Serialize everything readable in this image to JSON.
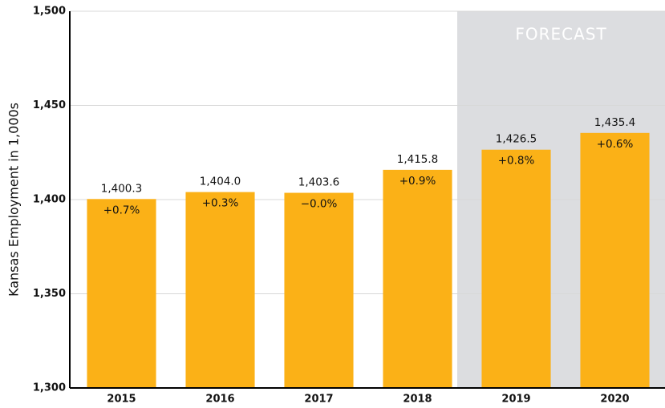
{
  "chart_data": {
    "type": "bar",
    "y_axis_label": "Kansas Employment in 1,000s",
    "categories": [
      "2015",
      "2016",
      "2017",
      "2018",
      "2019",
      "2020"
    ],
    "values": [
      1400.3,
      1404.0,
      1403.6,
      1415.8,
      1426.5,
      1435.4
    ],
    "value_labels": [
      "1,400.3",
      "1,404.0",
      "1,403.6",
      "1,415.8",
      "1,426.5",
      "1,435.4"
    ],
    "change_labels": [
      "+0.7%",
      "+0.3%",
      "−0.0%",
      "+0.9%",
      "+0.8%",
      "+0.6%"
    ],
    "color": "#fbb117",
    "forecast": {
      "label": "FORECAST",
      "from": "2019"
    },
    "ylim": [
      1300,
      1500
    ],
    "yticks": [
      {
        "value": 1300,
        "label": "1,300"
      },
      {
        "value": 1350,
        "label": "1,350"
      },
      {
        "value": 1400,
        "label": "1,400"
      },
      {
        "value": 1450,
        "label": "1,450"
      },
      {
        "value": 1500,
        "label": "1,500"
      }
    ],
    "grid": true
  }
}
